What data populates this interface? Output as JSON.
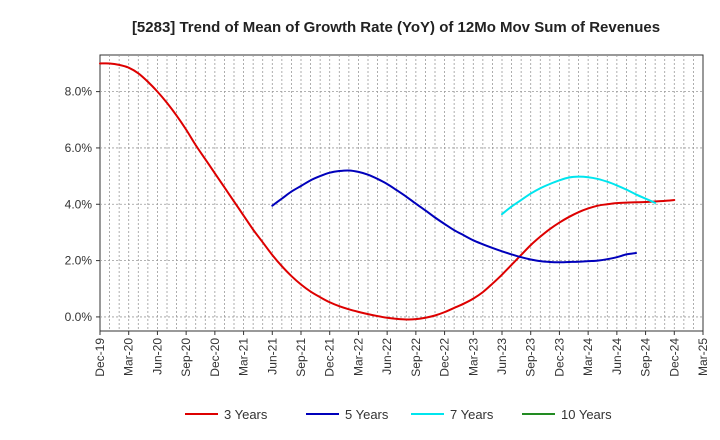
{
  "chart_data": {
    "type": "line",
    "title": "[5283]  Trend of Mean of Growth Rate (YoY) of 12Mo Mov Sum of Revenues",
    "xlabel": "",
    "ylabel": "",
    "x_tick_labels": [
      "Dec-19",
      "Mar-20",
      "Jun-20",
      "Sep-20",
      "Dec-20",
      "Mar-21",
      "Jun-21",
      "Sep-21",
      "Dec-21",
      "Mar-22",
      "Jun-22",
      "Sep-22",
      "Dec-22",
      "Mar-23",
      "Jun-23",
      "Sep-23",
      "Dec-23",
      "Mar-24",
      "Jun-24",
      "Sep-24",
      "Dec-24",
      "Mar-25"
    ],
    "y_ticks": [
      0,
      2,
      4,
      6,
      8
    ],
    "y_tick_labels": [
      "0.0%",
      "2.0%",
      "4.0%",
      "6.0%",
      "8.0%"
    ],
    "ylim": [
      -0.5,
      9.3
    ],
    "grid": true,
    "legend_position": "bottom",
    "series": [
      {
        "name": "3 Years",
        "color": "#dd0000",
        "start_index": 0,
        "values": [
          9.0,
          9.0,
          8.95,
          8.85,
          8.65,
          8.35,
          8.0,
          7.6,
          7.15,
          6.65,
          6.1,
          5.6,
          5.1,
          4.6,
          4.1,
          3.6,
          3.1,
          2.65,
          2.2,
          1.8,
          1.45,
          1.15,
          0.9,
          0.7,
          0.52,
          0.38,
          0.27,
          0.18,
          0.1,
          0.03,
          -0.03,
          -0.07,
          -0.09,
          -0.08,
          -0.03,
          0.05,
          0.17,
          0.32,
          0.47,
          0.65,
          0.88,
          1.18,
          1.5,
          1.85,
          2.2,
          2.55,
          2.85,
          3.12,
          3.35,
          3.55,
          3.72,
          3.85,
          3.95,
          4.0,
          4.04,
          4.06,
          4.07,
          4.08,
          4.1,
          4.12,
          4.15
        ]
      },
      {
        "name": "5 Years",
        "color": "#0000bb",
        "start_index": 18,
        "values": [
          3.95,
          4.2,
          4.45,
          4.65,
          4.85,
          5.0,
          5.12,
          5.18,
          5.2,
          5.15,
          5.05,
          4.9,
          4.72,
          4.5,
          4.27,
          4.02,
          3.78,
          3.53,
          3.3,
          3.08,
          2.9,
          2.72,
          2.58,
          2.45,
          2.33,
          2.22,
          2.12,
          2.04,
          1.98,
          1.95,
          1.94,
          1.95,
          1.96,
          1.98,
          2.0,
          2.05,
          2.12,
          2.22,
          2.27
        ]
      },
      {
        "name": "7 Years",
        "color": "#00e5ee",
        "start_index": 42,
        "values": [
          3.65,
          3.92,
          4.15,
          4.38,
          4.57,
          4.72,
          4.85,
          4.95,
          4.98,
          4.96,
          4.9,
          4.8,
          4.67,
          4.52,
          4.35,
          4.2,
          4.05
        ]
      },
      {
        "name": "10 Years",
        "color": "#228b22",
        "start_index": 0,
        "values": []
      }
    ]
  }
}
